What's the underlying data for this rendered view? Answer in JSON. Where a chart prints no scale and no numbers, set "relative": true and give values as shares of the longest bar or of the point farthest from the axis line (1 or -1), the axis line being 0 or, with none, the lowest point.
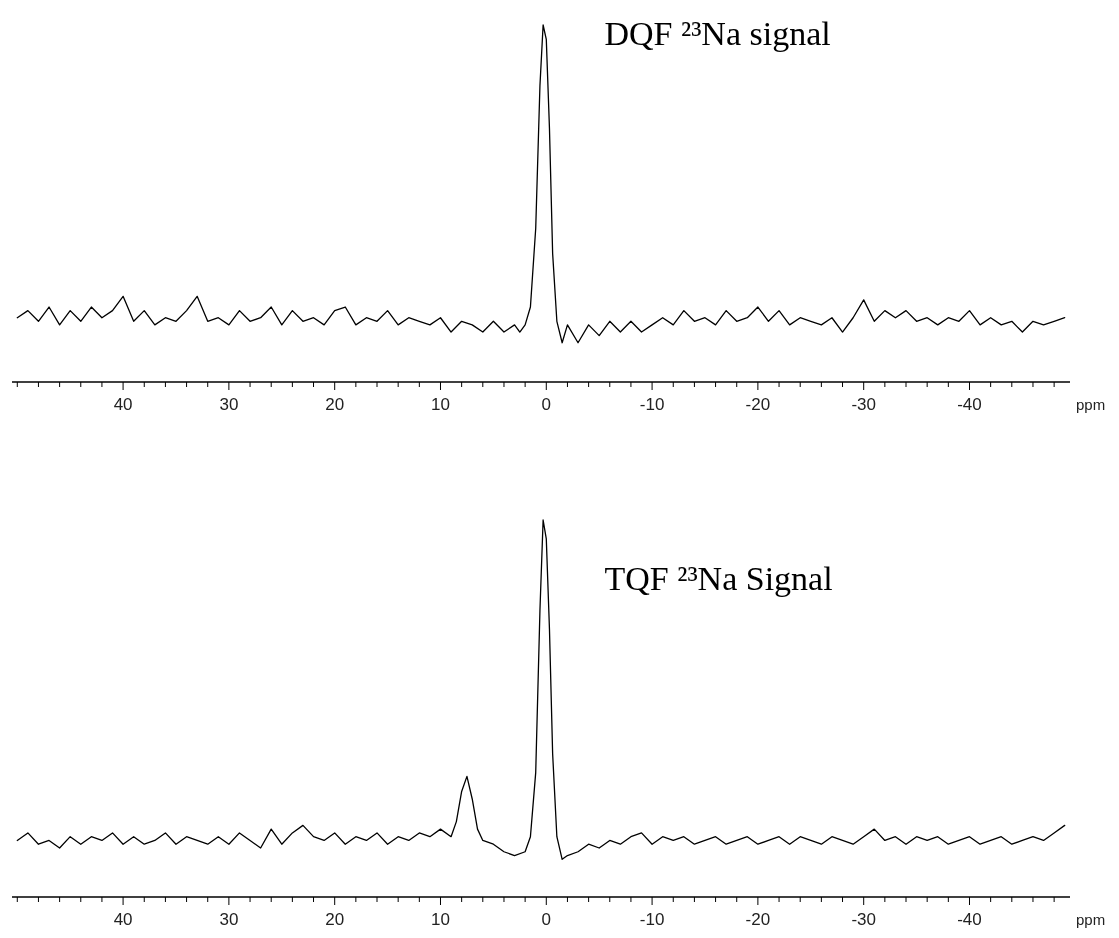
{
  "chart_data": [
    {
      "type": "line",
      "title": "DQF ²³Na signal",
      "xlabel": "ppm",
      "relative": true,
      "xlim": [
        50.5,
        -49.5
      ],
      "xticks": [
        {
          "value": 50,
          "label": null
        },
        {
          "value": 48,
          "label": null
        },
        {
          "value": 46,
          "label": null
        },
        {
          "value": 44,
          "label": null
        },
        {
          "value": 42,
          "label": null
        },
        40,
        {
          "value": 38,
          "label": null
        },
        {
          "value": 36,
          "label": null
        },
        {
          "value": 34,
          "label": null
        },
        {
          "value": 32,
          "label": null
        },
        30,
        {
          "value": 28,
          "label": null
        },
        {
          "value": 26,
          "label": null
        },
        {
          "value": 24,
          "label": null
        },
        {
          "value": 22,
          "label": null
        },
        20,
        {
          "value": 18,
          "label": null
        },
        {
          "value": 16,
          "label": null
        },
        {
          "value": 14,
          "label": null
        },
        {
          "value": 12,
          "label": null
        },
        10,
        {
          "value": 8,
          "label": null
        },
        {
          "value": 6,
          "label": null
        },
        {
          "value": 4,
          "label": null
        },
        {
          "value": 2,
          "label": null
        },
        0,
        {
          "value": -2,
          "label": null
        },
        {
          "value": -4,
          "label": null
        },
        {
          "value": -6,
          "label": null
        },
        {
          "value": -8,
          "label": null
        },
        -10,
        {
          "value": -12,
          "label": null
        },
        {
          "value": -14,
          "label": null
        },
        {
          "value": -16,
          "label": null
        },
        {
          "value": -18,
          "label": null
        },
        -20,
        {
          "value": -22,
          "label": null
        },
        {
          "value": -24,
          "label": null
        },
        {
          "value": -26,
          "label": null
        },
        {
          "value": -28,
          "label": null
        },
        -30,
        {
          "value": -32,
          "label": null
        },
        {
          "value": -34,
          "label": null
        },
        {
          "value": -36,
          "label": null
        },
        {
          "value": -38,
          "label": null
        },
        -40,
        {
          "value": -42,
          "label": null
        },
        {
          "value": -44,
          "label": null
        },
        {
          "value": -46,
          "label": null
        },
        {
          "value": -48,
          "label": null
        }
      ],
      "series": [
        {
          "color": "#000000",
          "x": [
            50,
            49,
            48,
            47,
            46,
            45,
            44,
            43,
            42,
            41,
            40,
            39,
            38,
            37,
            36,
            35,
            34,
            33,
            32,
            31,
            30,
            29,
            28,
            27,
            26,
            25,
            24,
            23,
            22,
            21,
            20,
            19,
            18,
            17,
            16,
            15,
            14,
            13,
            12,
            11,
            10,
            9,
            8,
            7,
            6,
            5,
            4,
            3,
            2.5,
            2,
            1.5,
            1,
            0.6,
            0.3,
            0,
            -0.3,
            -0.6,
            -1,
            -1.5,
            -2,
            -3,
            -4,
            -5,
            -6,
            -7,
            -8,
            -9,
            -10,
            -11,
            -12,
            -13,
            -14,
            -15,
            -16,
            -17,
            -18,
            -19,
            -20,
            -21,
            -22,
            -23,
            -24,
            -25,
            -26,
            -27,
            -28,
            -29,
            -30,
            -31,
            -32,
            -33,
            -34,
            -35,
            -36,
            -37,
            -38,
            -39,
            -40,
            -41,
            -42,
            -43,
            -44,
            -45,
            -46,
            -47,
            -48,
            -49
          ],
          "values": [
            0.18,
            0.2,
            0.17,
            0.21,
            0.16,
            0.2,
            0.17,
            0.21,
            0.18,
            0.2,
            0.24,
            0.17,
            0.2,
            0.16,
            0.18,
            0.17,
            0.2,
            0.24,
            0.17,
            0.18,
            0.16,
            0.2,
            0.17,
            0.18,
            0.21,
            0.16,
            0.2,
            0.17,
            0.18,
            0.16,
            0.2,
            0.21,
            0.16,
            0.18,
            0.17,
            0.2,
            0.16,
            0.18,
            0.17,
            0.16,
            0.18,
            0.14,
            0.17,
            0.16,
            0.14,
            0.17,
            0.14,
            0.16,
            0.14,
            0.16,
            0.21,
            0.43,
            0.83,
            1,
            0.96,
            0.71,
            0.36,
            0.17,
            0.11,
            0.16,
            0.11,
            0.16,
            0.13,
            0.17,
            0.14,
            0.17,
            0.14,
            0.16,
            0.18,
            0.16,
            0.2,
            0.17,
            0.18,
            0.16,
            0.2,
            0.17,
            0.18,
            0.21,
            0.17,
            0.2,
            0.16,
            0.18,
            0.17,
            0.16,
            0.18,
            0.14,
            0.18,
            0.23,
            0.17,
            0.2,
            0.18,
            0.2,
            0.17,
            0.18,
            0.16,
            0.18,
            0.17,
            0.2,
            0.16,
            0.18,
            0.16,
            0.17,
            0.14,
            0.17,
            0.16,
            0.17,
            0.18
          ]
        }
      ]
    },
    {
      "type": "line",
      "title": "TQF ²³Na Signal",
      "xlabel": "ppm",
      "relative": true,
      "xlim": [
        50.5,
        -49.5
      ],
      "xticks": [
        {
          "value": 50,
          "label": null
        },
        {
          "value": 48,
          "label": null
        },
        {
          "value": 46,
          "label": null
        },
        {
          "value": 44,
          "label": null
        },
        {
          "value": 42,
          "label": null
        },
        40,
        {
          "value": 38,
          "label": null
        },
        {
          "value": 36,
          "label": null
        },
        {
          "value": 34,
          "label": null
        },
        {
          "value": 32,
          "label": null
        },
        30,
        {
          "value": 28,
          "label": null
        },
        {
          "value": 26,
          "label": null
        },
        {
          "value": 24,
          "label": null
        },
        {
          "value": 22,
          "label": null
        },
        20,
        {
          "value": 18,
          "label": null
        },
        {
          "value": 16,
          "label": null
        },
        {
          "value": 14,
          "label": null
        },
        {
          "value": 12,
          "label": null
        },
        10,
        {
          "value": 8,
          "label": null
        },
        {
          "value": 6,
          "label": null
        },
        {
          "value": 4,
          "label": null
        },
        {
          "value": 2,
          "label": null
        },
        0,
        {
          "value": -2,
          "label": null
        },
        {
          "value": -4,
          "label": null
        },
        {
          "value": -6,
          "label": null
        },
        {
          "value": -8,
          "label": null
        },
        -10,
        {
          "value": -12,
          "label": null
        },
        {
          "value": -14,
          "label": null
        },
        {
          "value": -16,
          "label": null
        },
        {
          "value": -18,
          "label": null
        },
        -20,
        {
          "value": -22,
          "label": null
        },
        {
          "value": -24,
          "label": null
        },
        {
          "value": -26,
          "label": null
        },
        {
          "value": -28,
          "label": null
        },
        -30,
        {
          "value": -32,
          "label": null
        },
        {
          "value": -34,
          "label": null
        },
        {
          "value": -36,
          "label": null
        },
        {
          "value": -38,
          "label": null
        },
        -40,
        {
          "value": -42,
          "label": null
        },
        {
          "value": -44,
          "label": null
        },
        {
          "value": -46,
          "label": null
        },
        {
          "value": -48,
          "label": null
        }
      ],
      "series": [
        {
          "color": "#000000",
          "x": [
            50,
            49,
            48,
            47,
            46,
            45,
            44,
            43,
            42,
            41,
            40,
            39,
            38,
            37,
            36,
            35,
            34,
            33,
            32,
            31,
            30,
            29,
            28,
            27,
            26,
            25,
            24,
            23,
            22,
            21,
            20,
            19,
            18,
            17,
            16,
            15,
            14,
            13,
            12,
            11,
            10,
            9,
            8.5,
            8,
            7.5,
            7,
            6.5,
            6,
            5,
            4,
            3,
            2,
            1.5,
            1,
            0.6,
            0.3,
            0,
            -0.3,
            -0.6,
            -1,
            -1.5,
            -2,
            -3,
            -4,
            -5,
            -6,
            -7,
            -8,
            -9,
            -10,
            -11,
            -12,
            -13,
            -14,
            -15,
            -16,
            -17,
            -18,
            -19,
            -20,
            -21,
            -22,
            -23,
            -24,
            -25,
            -26,
            -27,
            -28,
            -29,
            -30,
            -31,
            -32,
            -33,
            -34,
            -35,
            -36,
            -37,
            -38,
            -39,
            -40,
            -41,
            -42,
            -43,
            -44,
            -45,
            -46,
            -47,
            -48,
            -49
          ],
          "values": [
            0.15,
            0.17,
            0.14,
            0.15,
            0.13,
            0.16,
            0.14,
            0.16,
            0.15,
            0.17,
            0.14,
            0.16,
            0.14,
            0.15,
            0.17,
            0.14,
            0.16,
            0.15,
            0.14,
            0.16,
            0.14,
            0.17,
            0.15,
            0.13,
            0.18,
            0.14,
            0.17,
            0.19,
            0.16,
            0.15,
            0.17,
            0.14,
            0.16,
            0.15,
            0.17,
            0.14,
            0.16,
            0.15,
            0.17,
            0.16,
            0.18,
            0.16,
            0.2,
            0.28,
            0.32,
            0.26,
            0.18,
            0.15,
            0.14,
            0.12,
            0.11,
            0.12,
            0.16,
            0.33,
            0.76,
            1,
            0.95,
            0.71,
            0.38,
            0.16,
            0.1,
            0.11,
            0.12,
            0.14,
            0.13,
            0.15,
            0.14,
            0.16,
            0.17,
            0.14,
            0.16,
            0.15,
            0.16,
            0.14,
            0.15,
            0.16,
            0.14,
            0.15,
            0.16,
            0.14,
            0.15,
            0.16,
            0.14,
            0.16,
            0.15,
            0.14,
            0.16,
            0.15,
            0.14,
            0.16,
            0.18,
            0.15,
            0.16,
            0.14,
            0.16,
            0.15,
            0.16,
            0.14,
            0.15,
            0.16,
            0.14,
            0.15,
            0.16,
            0.14,
            0.15,
            0.16,
            0.15,
            0.17,
            0.19
          ]
        }
      ]
    }
  ]
}
